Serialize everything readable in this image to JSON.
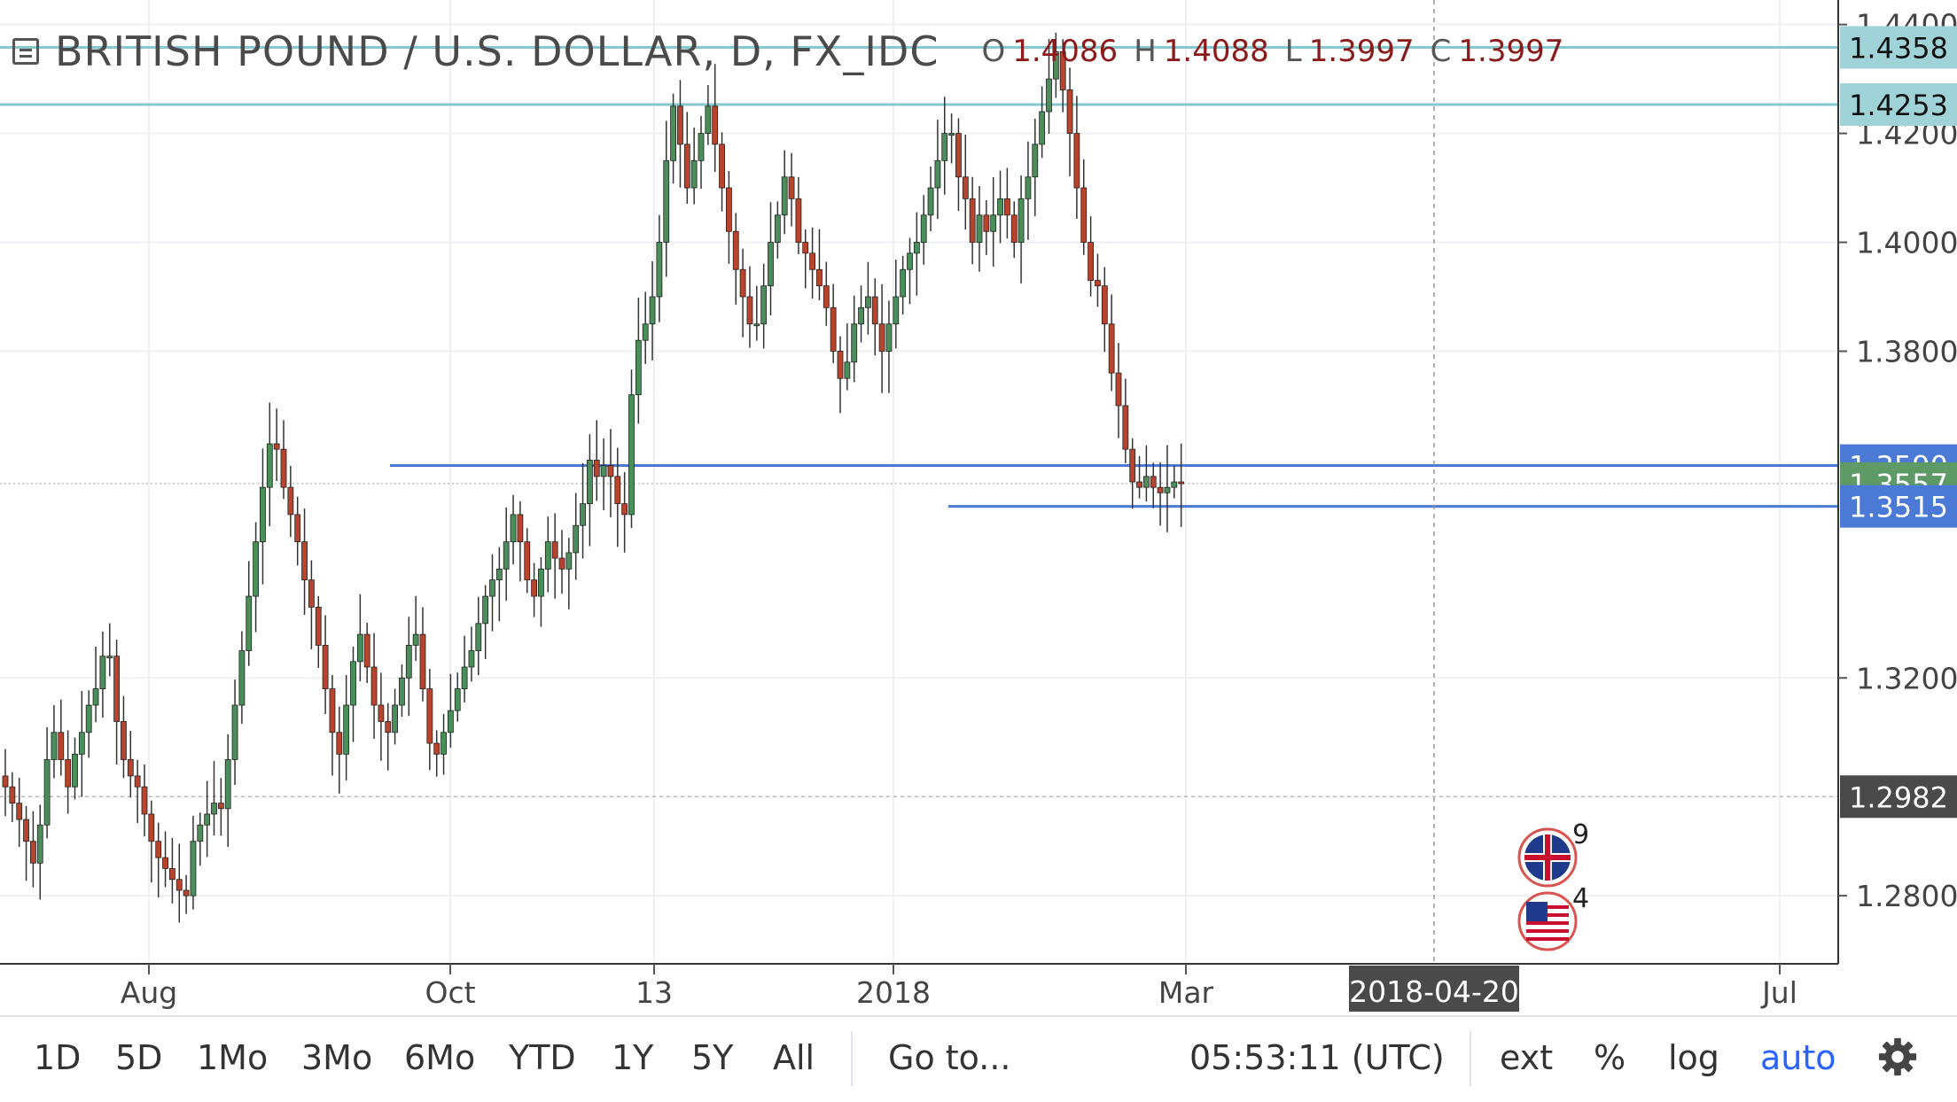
{
  "header": {
    "title": "BRITISH POUND / U.S. DOLLAR, D, FX_IDC",
    "ohlc": [
      {
        "key": "O",
        "value": "1.4086"
      },
      {
        "key": "H",
        "value": "1.4088"
      },
      {
        "key": "L",
        "value": "1.3997"
      },
      {
        "key": "C",
        "value": "1.3997"
      }
    ]
  },
  "toolbar": {
    "ranges": [
      "1D",
      "5D",
      "1Mo",
      "3Mo",
      "6Mo",
      "YTD",
      "1Y",
      "5Y",
      "All"
    ],
    "goto": "Go to...",
    "clock": "05:53:11 (UTC)",
    "ext": "ext",
    "percent": "%",
    "log": "log",
    "auto": "auto"
  },
  "colors": {
    "up": "#4a8f5a",
    "down": "#b8442d",
    "wick": "#333333",
    "teal_line": "#86c8cf",
    "blue_line": "#4a79d6",
    "auto_active": "#2962ff"
  },
  "events": [
    {
      "flag": "uk-flag-icon",
      "count": "9"
    },
    {
      "flag": "us-flag-icon",
      "count": "4"
    }
  ],
  "chart_data": {
    "type": "candlestick",
    "title": "BRITISH POUND / U.S. DOLLAR, D, FX_IDC",
    "xlabel": "",
    "ylabel": "",
    "ylim": [
      1.2675,
      1.4445
    ],
    "y_ticks": [
      "1.2800",
      "1.3200",
      "1.3800",
      "1.4000",
      "1.4200",
      "1.4400"
    ],
    "x_ticks": [
      "Aug",
      "Oct",
      "13",
      "2018",
      "Mar",
      "Jul"
    ],
    "crosshair_date": "2018-04-20",
    "grid": true,
    "price_levels": [
      {
        "label": "1.4358",
        "value": 1.4358,
        "style": "teal"
      },
      {
        "label": "1.4253",
        "value": 1.4253,
        "style": "teal"
      },
      {
        "label": "1.3590",
        "value": 1.359,
        "style": "blue"
      },
      {
        "label": "1.3557",
        "value": 1.3557,
        "style": "last"
      },
      {
        "label": "1.3515",
        "value": 1.3515,
        "style": "blue"
      },
      {
        "label": "1.2982",
        "value": 1.2982,
        "style": "dark"
      }
    ],
    "close_path": [
      1.3,
      1.297,
      1.294,
      1.29,
      1.286,
      1.293,
      1.305,
      1.31,
      1.305,
      1.3,
      1.306,
      1.31,
      1.315,
      1.318,
      1.324,
      1.324,
      1.312,
      1.305,
      1.302,
      1.3,
      1.295,
      1.29,
      1.287,
      1.285,
      1.283,
      1.281,
      1.28,
      1.29,
      1.293,
      1.295,
      1.297,
      1.296,
      1.305,
      1.315,
      1.325,
      1.335,
      1.345,
      1.355,
      1.363,
      1.362,
      1.355,
      1.35,
      1.345,
      1.338,
      1.333,
      1.326,
      1.318,
      1.31,
      1.306,
      1.315,
      1.323,
      1.328,
      1.322,
      1.315,
      1.312,
      1.31,
      1.315,
      1.32,
      1.326,
      1.328,
      1.318,
      1.308,
      1.306,
      1.31,
      1.314,
      1.318,
      1.322,
      1.325,
      1.33,
      1.335,
      1.338,
      1.34,
      1.345,
      1.35,
      1.345,
      1.338,
      1.335,
      1.34,
      1.345,
      1.342,
      1.34,
      1.343,
      1.348,
      1.352,
      1.36,
      1.357,
      1.359,
      1.357,
      1.352,
      1.35,
      1.372,
      1.382,
      1.385,
      1.39,
      1.4,
      1.415,
      1.425,
      1.418,
      1.41,
      1.415,
      1.42,
      1.425,
      1.418,
      1.41,
      1.402,
      1.395,
      1.39,
      1.385,
      1.385,
      1.392,
      1.4,
      1.405,
      1.412,
      1.408,
      1.4,
      1.398,
      1.395,
      1.392,
      1.388,
      1.38,
      1.375,
      1.378,
      1.385,
      1.388,
      1.39,
      1.385,
      1.38,
      1.385,
      1.39,
      1.395,
      1.398,
      1.4,
      1.405,
      1.41,
      1.415,
      1.42,
      1.42,
      1.412,
      1.408,
      1.4,
      1.405,
      1.402,
      1.405,
      1.408,
      1.405,
      1.4,
      1.408,
      1.412,
      1.418,
      1.424,
      1.43,
      1.435,
      1.428,
      1.42,
      1.41,
      1.4,
      1.393,
      1.392,
      1.385,
      1.376,
      1.37,
      1.362,
      1.356,
      1.355,
      1.357,
      1.355,
      1.354,
      1.355,
      1.356,
      1.3557
    ]
  }
}
